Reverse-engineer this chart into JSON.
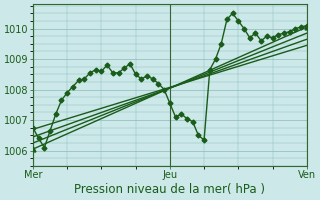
{
  "xlabel": "Pression niveau de la mer( hPa )",
  "ylim": [
    1005.5,
    1010.8
  ],
  "xlim": [
    0,
    48
  ],
  "yticks": [
    1006,
    1007,
    1008,
    1009,
    1010
  ],
  "xtick_positions": [
    0,
    24,
    48
  ],
  "xtick_labels": [
    "Mer",
    "Jeu",
    "Ven"
  ],
  "bg_color": "#cce8e8",
  "grid_color": "#88bbbb",
  "line_color": "#1a5c1a",
  "vline_positions": [
    0,
    24,
    48
  ],
  "vline_color": "#336633",
  "vline_lw": 0.8,
  "xlabel_fontsize": 8.5,
  "tick_fontsize": 7,
  "tick_color": "#1a5c1a",
  "series_main": {
    "x": [
      0,
      1,
      2,
      3,
      4,
      5,
      6,
      7,
      8,
      9,
      10,
      11,
      12,
      13,
      14,
      15,
      16,
      17,
      18,
      19,
      20,
      21,
      22,
      23,
      24,
      25,
      26,
      27,
      28,
      29,
      30,
      31,
      32,
      33,
      34,
      35,
      36,
      37,
      38,
      39,
      40,
      41,
      42,
      43,
      44,
      45,
      46,
      47,
      48
    ],
    "y": [
      1006.75,
      1006.4,
      1006.1,
      1006.65,
      1007.2,
      1007.65,
      1007.9,
      1008.1,
      1008.3,
      1008.35,
      1008.55,
      1008.65,
      1008.6,
      1008.8,
      1008.55,
      1008.55,
      1008.7,
      1008.85,
      1008.5,
      1008.35,
      1008.45,
      1008.35,
      1008.2,
      1008.0,
      1007.55,
      1007.1,
      1007.2,
      1007.05,
      1006.95,
      1006.5,
      1006.35,
      1008.65,
      1009.0,
      1009.5,
      1010.3,
      1010.5,
      1010.25,
      1010.0,
      1009.7,
      1009.85,
      1009.6,
      1009.75,
      1009.7,
      1009.8,
      1009.85,
      1009.9,
      1010.0,
      1010.05,
      1010.1
    ],
    "marker": "D",
    "ms": 2.5,
    "lw": 1.0
  },
  "series_smooth": [
    {
      "x": [
        0,
        48
      ],
      "y": [
        1006.05,
        1010.05
      ],
      "marker": "^",
      "ms": 3.5,
      "lw": 1.0
    },
    {
      "x": [
        0,
        48
      ],
      "y": [
        1006.25,
        1009.85
      ],
      "marker": null,
      "ms": 0,
      "lw": 1.0
    },
    {
      "x": [
        0,
        48
      ],
      "y": [
        1006.45,
        1009.65
      ],
      "marker": null,
      "ms": 0,
      "lw": 1.0
    },
    {
      "x": [
        0,
        48
      ],
      "y": [
        1006.7,
        1009.45
      ],
      "marker": null,
      "ms": 0,
      "lw": 1.0
    }
  ]
}
